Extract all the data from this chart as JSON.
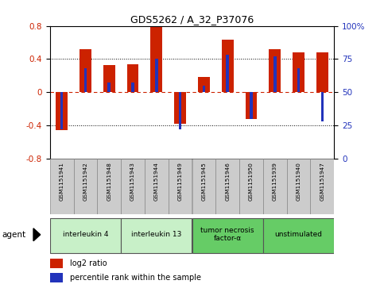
{
  "title": "GDS5262 / A_32_P37076",
  "samples": [
    "GSM1151941",
    "GSM1151942",
    "GSM1151948",
    "GSM1151943",
    "GSM1151944",
    "GSM1151949",
    "GSM1151945",
    "GSM1151946",
    "GSM1151950",
    "GSM1151939",
    "GSM1151940",
    "GSM1151947"
  ],
  "log2_ratio": [
    -0.46,
    0.52,
    0.33,
    0.34,
    0.8,
    -0.38,
    0.18,
    0.63,
    -0.32,
    0.52,
    0.48,
    0.48
  ],
  "percentile": [
    22,
    68,
    57,
    57,
    75,
    22,
    55,
    78,
    30,
    77,
    68,
    28
  ],
  "agents": [
    {
      "label": "interleukin 4",
      "start": 0,
      "end": 2,
      "color": "#c8f0c8"
    },
    {
      "label": "interleukin 13",
      "start": 3,
      "end": 5,
      "color": "#c8f0c8"
    },
    {
      "label": "tumor necrosis\nfactor-α",
      "start": 6,
      "end": 8,
      "color": "#66cc66"
    },
    {
      "label": "unstimulated",
      "start": 9,
      "end": 11,
      "color": "#66cc66"
    }
  ],
  "bar_color_red": "#cc2200",
  "bar_color_blue": "#2233bb",
  "ylim": [
    -0.8,
    0.8
  ],
  "y2lim": [
    0,
    100
  ],
  "y_ticks": [
    -0.8,
    -0.4,
    0.0,
    0.4,
    0.8
  ],
  "y2_ticks": [
    0,
    25,
    50,
    75,
    100
  ],
  "agent_label": "agent",
  "legend_log2": "log2 ratio",
  "legend_pct": "percentile rank within the sample",
  "bar_width": 0.5,
  "blue_bar_width": 0.12
}
